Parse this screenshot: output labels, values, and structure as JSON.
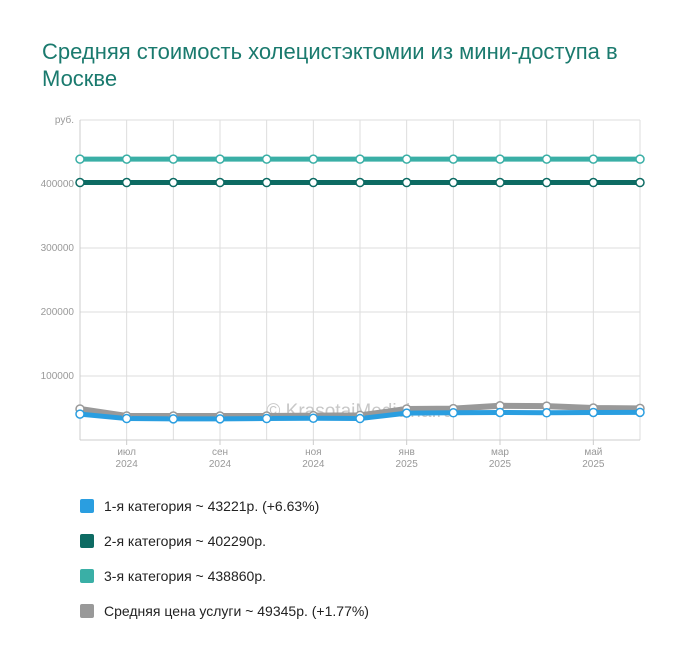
{
  "title": "Средняя стоимость холецистэктомии из мини-доступа в Москве",
  "watermark": "© KrasotaiMedicina.ru",
  "chart_data": {
    "type": "line",
    "ylabel": "руб.",
    "ylim": [
      0,
      500000
    ],
    "yticks": [
      100000,
      200000,
      300000,
      400000
    ],
    "x": [
      "2024-05",
      "2024-06",
      "2024-07",
      "2024-08",
      "2024-09",
      "2024-10",
      "2024-11",
      "2024-12",
      "2025-01",
      "2025-02",
      "2025-03",
      "2025-04",
      "2025-05"
    ],
    "xticks": [
      {
        "x": "2024-06",
        "month": "июл",
        "year": "2024"
      },
      {
        "x": "2024-08",
        "month": "сен",
        "year": "2024"
      },
      {
        "x": "2024-10",
        "month": "ноя",
        "year": "2024"
      },
      {
        "x": "2024-12",
        "month": "янв",
        "year": "2025"
      },
      {
        "x": "2025-02",
        "month": "мар",
        "year": "2025"
      },
      {
        "x": "2025-04",
        "month": "май",
        "year": "2025"
      }
    ],
    "series": [
      {
        "name": "1-я категория ~ 43221р. (+6.63%)",
        "color": "#2a9ee0",
        "values": [
          40500,
          33500,
          33000,
          33000,
          33500,
          34000,
          33500,
          42000,
          42500,
          43000,
          42500,
          43000,
          43221
        ]
      },
      {
        "name": "2-я категория ~ 402290р.",
        "color": "#0d6b63",
        "values": [
          402290,
          402290,
          402290,
          402290,
          402290,
          402290,
          402290,
          402290,
          402290,
          402290,
          402290,
          402290,
          402290
        ]
      },
      {
        "name": "3-я категория ~ 438860р.",
        "color": "#3aafa6",
        "values": [
          438860,
          438860,
          438860,
          438860,
          438860,
          438860,
          438860,
          438860,
          438860,
          438860,
          438860,
          438860,
          438860
        ]
      },
      {
        "name": "Средняя цена услуги ~ 49345р. (+1.77%)",
        "color": "#999999",
        "values": [
          48500,
          37500,
          37500,
          37500,
          37500,
          38000,
          38500,
          48500,
          49000,
          53500,
          53000,
          50000,
          49345
        ]
      }
    ]
  }
}
